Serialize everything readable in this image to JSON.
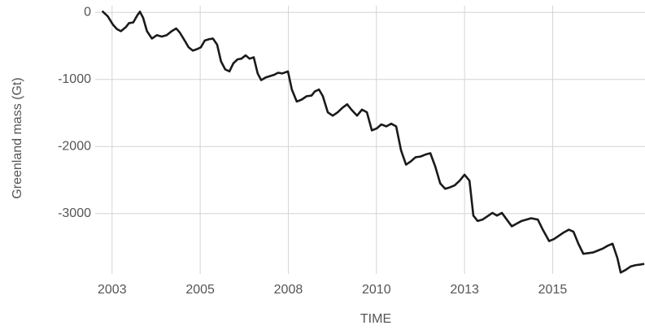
{
  "chart_data": {
    "type": "line",
    "xlabel": "TIME",
    "ylabel": "Greenland mass (Gt)",
    "x": [
      2002.72,
      2002.88,
      2003.02,
      2003.14,
      2003.25,
      2003.39,
      2003.48,
      2003.6,
      2003.72,
      2003.79,
      2003.88,
      2003.99,
      2004.13,
      2004.27,
      2004.41,
      2004.55,
      2004.69,
      2004.82,
      2004.92,
      2005.06,
      2005.17,
      2005.29,
      2005.4,
      2005.52,
      2005.63,
      2005.75,
      2005.86,
      2005.98,
      2006.09,
      2006.21,
      2006.33,
      2006.44,
      2006.56,
      2006.67,
      2006.79,
      2006.9,
      2007.02,
      2007.13,
      2007.23,
      2007.36,
      2007.48,
      2007.6,
      2007.71,
      2007.83,
      2007.99,
      2008.1,
      2008.24,
      2008.38,
      2008.52,
      2008.66,
      2008.75,
      2008.87,
      2008.98,
      2009.12,
      2009.26,
      2009.4,
      2009.54,
      2009.67,
      2009.79,
      2009.95,
      2010.09,
      2010.23,
      2010.37,
      2010.51,
      2010.64,
      2010.78,
      2010.92,
      2011.06,
      2011.2,
      2011.34,
      2011.48,
      2011.61,
      2011.75,
      2011.89,
      2012.03,
      2012.17,
      2012.31,
      2012.45,
      2012.58,
      2012.72,
      2012.86,
      2013.0,
      2013.14,
      2013.25,
      2013.37,
      2013.51,
      2013.65,
      2013.79,
      2013.92,
      2014.06,
      2014.2,
      2014.34,
      2014.48,
      2014.62,
      2014.76,
      2014.89,
      2015.08,
      2015.22,
      2015.4,
      2015.54,
      2015.68,
      2015.82,
      2015.96,
      2016.09,
      2016.23,
      2016.37,
      2016.51,
      2016.65,
      2016.79,
      2016.93,
      2017.06,
      2017.2,
      2017.34,
      2017.43,
      2017.57,
      2017.71,
      2017.85,
      2017.99,
      2018.1
    ],
    "series": [
      {
        "color": "#1a1a1a",
        "values": [
          20,
          -60,
          -180,
          -250,
          -280,
          -220,
          -160,
          -150,
          -40,
          10,
          -80,
          -280,
          -390,
          -340,
          -360,
          -340,
          -280,
          -240,
          -300,
          -420,
          -520,
          -570,
          -550,
          -520,
          -420,
          -400,
          -390,
          -480,
          -730,
          -850,
          -880,
          -760,
          -700,
          -690,
          -640,
          -690,
          -670,
          -910,
          -1010,
          -970,
          -950,
          -930,
          -900,
          -910,
          -880,
          -1150,
          -1330,
          -1300,
          -1250,
          -1240,
          -1180,
          -1150,
          -1250,
          -1490,
          -1540,
          -1490,
          -1420,
          -1370,
          -1450,
          -1540,
          -1450,
          -1490,
          -1760,
          -1730,
          -1670,
          -1700,
          -1660,
          -1700,
          -2060,
          -2270,
          -2220,
          -2160,
          -2150,
          -2120,
          -2100,
          -2300,
          -2550,
          -2630,
          -2610,
          -2580,
          -2510,
          -2420,
          -2510,
          -3030,
          -3110,
          -3090,
          -3040,
          -2990,
          -3030,
          -2990,
          -3090,
          -3190,
          -3150,
          -3110,
          -3090,
          -3070,
          -3090,
          -3240,
          -3410,
          -3380,
          -3330,
          -3280,
          -3240,
          -3270,
          -3450,
          -3600,
          -3590,
          -3580,
          -3550,
          -3520,
          -3480,
          -3450,
          -3670,
          -3880,
          -3840,
          -3790,
          -3770,
          -3760,
          -3750
        ]
      }
    ],
    "xlim": [
      2002.52,
      2018.12
    ],
    "xticks": [
      2003,
      {
        "value": 2005.5,
        "label": "2005"
      },
      2008,
      {
        "value": 2010.5,
        "label": "2010"
      },
      2013,
      {
        "value": 2015.5,
        "label": "2015"
      }
    ],
    "ylim": [
      -3900,
      100
    ],
    "yticks": [
      0,
      -1000,
      -2000,
      -3000
    ],
    "grid": true
  }
}
